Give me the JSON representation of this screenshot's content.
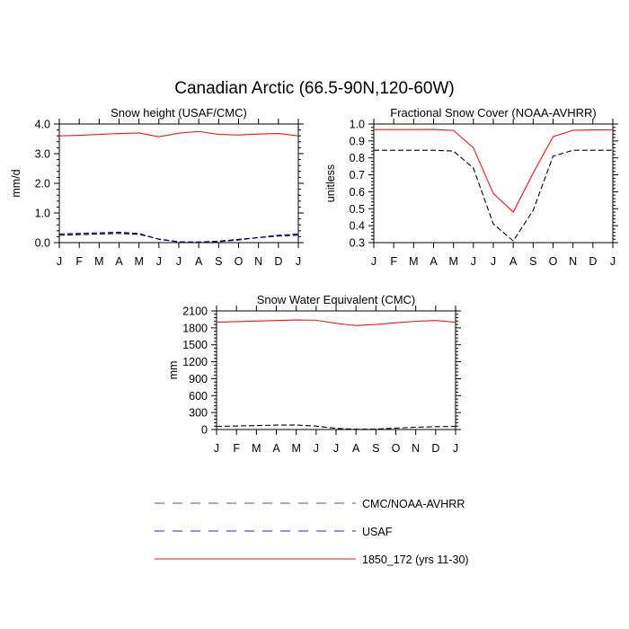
{
  "figure": {
    "title": "Canadian Arctic (66.5-90N,120-60W)"
  },
  "series_styles": {
    "CMC/NOAA-AVHRR": {
      "color": "#000000",
      "dash": "dashed"
    },
    "USAF": {
      "color": "#00008b",
      "dash": "dashed"
    },
    "1850_172 (yrs 11-30)": {
      "color": "#e31a1c",
      "dash": "solid"
    }
  },
  "legend": [
    {
      "label": "CMC/NOAA-AVHRR",
      "color": "#555555",
      "dash": "dashed"
    },
    {
      "label": "USAF",
      "color": "#2a2a9a",
      "dash": "dashed"
    },
    {
      "label": "1850_172 (yrs 11-30)",
      "color": "#e31a1c",
      "dash": "solid"
    }
  ],
  "chart_data": [
    {
      "type": "line",
      "title": "Snow height (USAF/CMC)",
      "ylabel": "mm/d",
      "xlabel": "",
      "categories": [
        "J",
        "F",
        "M",
        "A",
        "M",
        "J",
        "J",
        "A",
        "S",
        "O",
        "N",
        "D",
        "J"
      ],
      "ylim": [
        0,
        4.0
      ],
      "yticks": [
        0,
        1.0,
        2.0,
        3.0,
        4.0
      ],
      "ytick_labels": [
        "0.0",
        "1.0",
        "2.0",
        "3.0",
        "4.0"
      ],
      "series": [
        {
          "name": "CMC/NOAA-AVHRR",
          "values": [
            0.25,
            0.27,
            0.29,
            0.31,
            0.28,
            0.12,
            0.03,
            0.02,
            0.05,
            0.11,
            0.17,
            0.22,
            0.25
          ]
        },
        {
          "name": "USAF",
          "values": [
            0.29,
            0.31,
            0.33,
            0.35,
            0.31,
            0.11,
            0.02,
            0.01,
            0.03,
            0.09,
            0.17,
            0.25,
            0.29
          ]
        },
        {
          "name": "1850_172 (yrs 11-30)",
          "values": [
            3.6,
            3.62,
            3.65,
            3.68,
            3.7,
            3.57,
            3.69,
            3.75,
            3.65,
            3.63,
            3.66,
            3.68,
            3.6
          ]
        }
      ]
    },
    {
      "type": "line",
      "title": "Fractional Snow Cover (NOAA-AVHRR)",
      "ylabel": "unitless",
      "xlabel": "",
      "categories": [
        "J",
        "F",
        "M",
        "A",
        "M",
        "J",
        "J",
        "A",
        "S",
        "O",
        "N",
        "D",
        "J"
      ],
      "ylim": [
        0.3,
        1.0
      ],
      "yticks": [
        0.3,
        0.4,
        0.5,
        0.6,
        0.7,
        0.8,
        0.9,
        1.0
      ],
      "ytick_labels": [
        "0.3",
        "0.4",
        "0.5",
        "0.6",
        "0.7",
        "0.8",
        "0.9",
        "1.0"
      ],
      "series": [
        {
          "name": "CMC/NOAA-AVHRR",
          "values": [
            0.845,
            0.845,
            0.845,
            0.845,
            0.84,
            0.74,
            0.41,
            0.31,
            0.49,
            0.81,
            0.845,
            0.845,
            0.845
          ]
        },
        {
          "name": "1850_172 (yrs 11-30)",
          "values": [
            0.967,
            0.967,
            0.967,
            0.968,
            0.962,
            0.86,
            0.59,
            0.48,
            0.71,
            0.925,
            0.963,
            0.965,
            0.966
          ]
        }
      ]
    },
    {
      "type": "line",
      "title": "Snow Water Equivalent (CMC)",
      "ylabel": "mm",
      "xlabel": "",
      "categories": [
        "J",
        "F",
        "M",
        "A",
        "M",
        "J",
        "J",
        "A",
        "S",
        "O",
        "N",
        "D",
        "J"
      ],
      "ylim": [
        0,
        2100
      ],
      "yticks": [
        0,
        300,
        600,
        900,
        1200,
        1500,
        1800,
        2100
      ],
      "ytick_labels": [
        "0",
        "300",
        "600",
        "900",
        "1200",
        "1500",
        "1800",
        "2100"
      ],
      "series": [
        {
          "name": "CMC/NOAA-AVHRR",
          "values": [
            55,
            62,
            70,
            78,
            80,
            60,
            20,
            5,
            8,
            25,
            40,
            50,
            55
          ]
        },
        {
          "name": "1850_172 (yrs 11-30)",
          "values": [
            1900,
            1910,
            1920,
            1930,
            1940,
            1935,
            1880,
            1840,
            1860,
            1890,
            1915,
            1930,
            1900
          ]
        }
      ]
    }
  ]
}
